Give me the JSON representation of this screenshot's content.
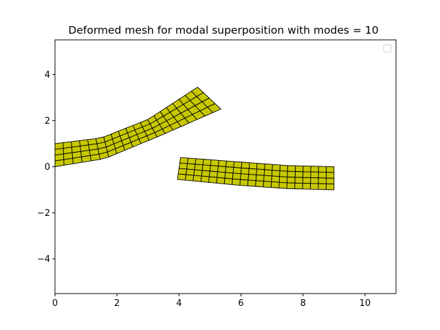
{
  "chart_data": {
    "type": "mesh",
    "title": "Deformed mesh for modal superposition with modes = 10",
    "xlabel": "",
    "ylabel": "",
    "xlim": [
      0,
      11
    ],
    "ylim": [
      -5.5,
      5.5
    ],
    "xticks": [
      0,
      2,
      4,
      6,
      8,
      10
    ],
    "yticks": [
      -4,
      -2,
      0,
      2,
      4
    ],
    "xtick_labels": [
      "0",
      "2",
      "4",
      "6",
      "8",
      "10"
    ],
    "ytick_labels": [
      "−4",
      "−2",
      "0",
      "2",
      "4"
    ],
    "grid": false,
    "legend": {
      "placement": "upper-right",
      "entries": []
    },
    "colors": {
      "fill": "#c8c800",
      "edge": "#000000",
      "axes": "#000000",
      "background": "#ffffff"
    },
    "meshes": [
      {
        "name": "",
        "elements_along": 20,
        "elements_across": 4,
        "edges": {
          "top": [
            [
              0,
              1.0
            ],
            [
              1.5,
              1.25
            ],
            [
              3.0,
              2.05
            ],
            [
              4.6,
              3.45
            ]
          ],
          "bottom": [
            [
              0,
              0.0
            ],
            [
              1.6,
              0.35
            ],
            [
              3.4,
              1.35
            ],
            [
              5.35,
              2.5
            ]
          ]
        }
      },
      {
        "name": "",
        "elements_along": 20,
        "elements_across": 4,
        "edges": {
          "top": [
            [
              4.05,
              0.4
            ],
            [
              6.0,
              0.2
            ],
            [
              7.5,
              0.05
            ],
            [
              9.0,
              0.0
            ]
          ],
          "bottom": [
            [
              3.95,
              -0.55
            ],
            [
              5.9,
              -0.8
            ],
            [
              7.5,
              -0.95
            ],
            [
              9.0,
              -1.0
            ]
          ]
        }
      }
    ]
  }
}
